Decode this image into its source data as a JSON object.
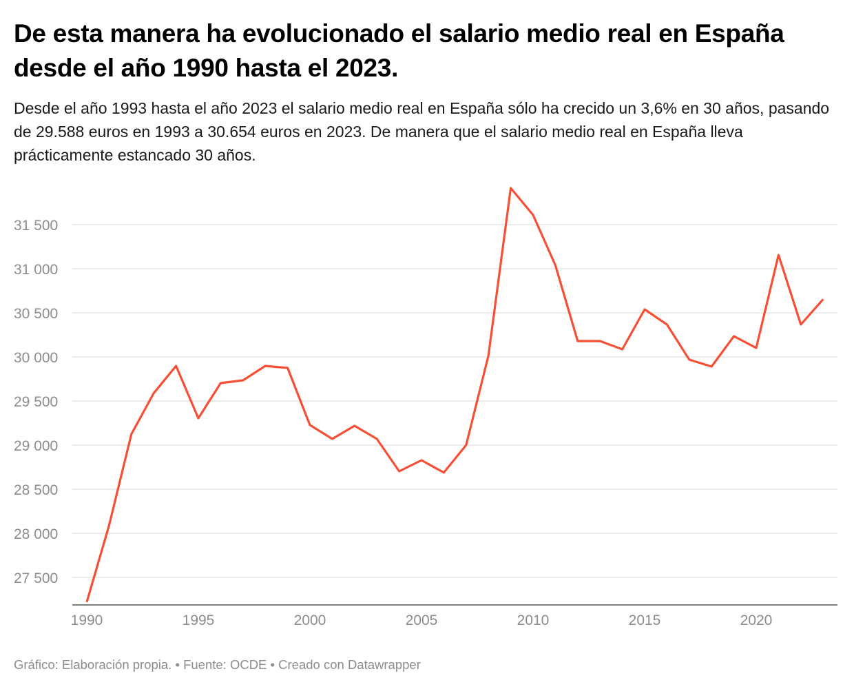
{
  "chart_data": {
    "type": "line",
    "title": "De esta manera ha evolucionado el salario medio real en España desde el año 1990 hasta el 2023.",
    "subtitle": "Desde el año 1993 hasta el año 2023 el salario medio real en España sólo ha crecido un 3,6% en 30 años, pasando de 29.588 euros en 1993 a 30.654 euros en 2023. De manera que el salario medio real en España lleva prácticamente estancado 30 años.",
    "xlabel": "",
    "ylabel": "",
    "x": [
      1990,
      1991,
      1992,
      1993,
      1994,
      1995,
      1996,
      1997,
      1998,
      1999,
      2000,
      2001,
      2002,
      2003,
      2004,
      2005,
      2006,
      2007,
      2008,
      2009,
      2010,
      2011,
      2012,
      2013,
      2014,
      2015,
      2016,
      2017,
      2018,
      2019,
      2020,
      2021,
      2022,
      2023
    ],
    "series": [
      {
        "values": [
          27220,
          28090,
          29125,
          29588,
          29898,
          29305,
          29703,
          29734,
          29898,
          29875,
          29227,
          29070,
          29219,
          29070,
          28703,
          28828,
          28688,
          29000,
          30016,
          31914,
          31609,
          31039,
          30180,
          30180,
          30086,
          30539,
          30367,
          29969,
          29891,
          30234,
          30102,
          31156,
          30367,
          30654
        ],
        "color": "#f74f35"
      }
    ],
    "xticks": [
      1990,
      1995,
      2000,
      2005,
      2010,
      2015,
      2020
    ],
    "xtick_labels": [
      "1990",
      "1995",
      "2000",
      "2005",
      "2010",
      "2015",
      "2020"
    ],
    "yticks": [
      27500,
      28000,
      28500,
      29000,
      29500,
      30000,
      30500,
      31000,
      31500
    ],
    "ytick_labels": [
      "27 500",
      "28 000",
      "28 500",
      "29 000",
      "29 500",
      "30 000",
      "30 500",
      "31 000",
      "31 500"
    ],
    "xlim": [
      1990,
      2023
    ],
    "grid": "horizontal",
    "footer": "Gráfico: Elaboración propia. • Fuente: OCDE • Creado con Datawrapper"
  }
}
